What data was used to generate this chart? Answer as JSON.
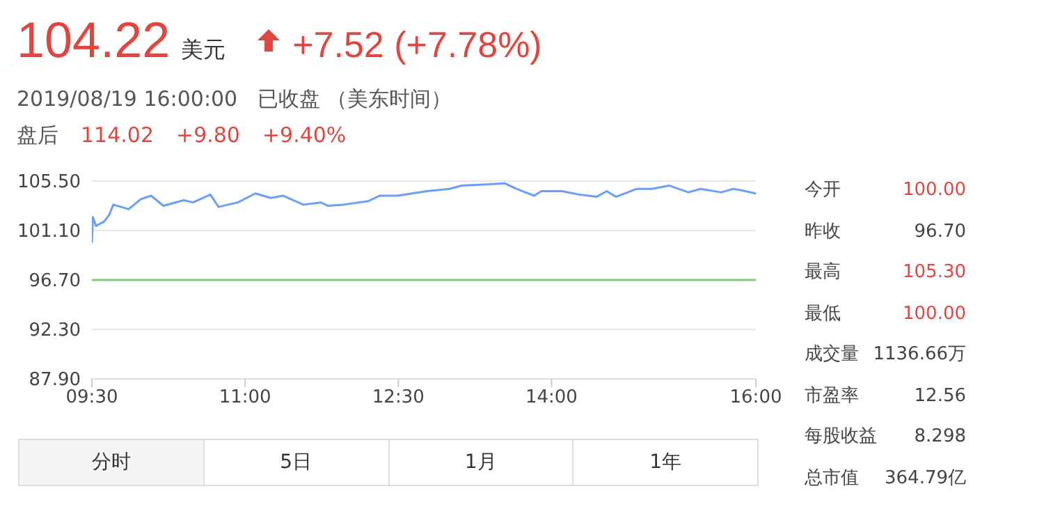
{
  "chart_data": {
    "type": "line",
    "title": "104.22",
    "subtitle": "2019/08/19 16:00:00   已收盘 （美东时间）",
    "annotations": [
      "美元",
      "+7.52 (+7.78%)",
      "盘后",
      "114.02",
      "+9.80",
      "+9.40%",
      "今开",
      "100.00",
      "昨收",
      "96.70",
      "最高",
      "105.30",
      "最低",
      "100.00",
      "成交量",
      "1136.66万",
      "市盈率",
      "12.56",
      "每股收益",
      "8.298",
      "总市值",
      "364.79亿",
      "分时",
      "5日",
      "1月",
      "1年"
    ],
    "series": [
      {
        "color": "#6a9ef8",
        "x": [
          9.5,
          9.51,
          9.54,
          9.62,
          9.67,
          9.71,
          9.86,
          9.98,
          10.08,
          10.2,
          10.4,
          10.49,
          10.66,
          10.74,
          10.93,
          11.1,
          11.25,
          11.37,
          11.57,
          11.74,
          11.81,
          11.96,
          12.2,
          12.32,
          12.49,
          12.78,
          13.0,
          13.12,
          13.37,
          13.54,
          13.66,
          13.83,
          13.9,
          14.1,
          14.27,
          14.44,
          14.54,
          14.63,
          14.83,
          14.98,
          15.15,
          15.34,
          15.46,
          15.66,
          15.78,
          15.85,
          16.0
        ],
        "values": [
          100.0,
          102.3,
          101.5,
          101.9,
          102.5,
          103.4,
          103.0,
          103.9,
          104.2,
          103.3,
          103.8,
          103.6,
          104.3,
          103.2,
          103.6,
          104.4,
          104.0,
          104.2,
          103.4,
          103.6,
          103.3,
          103.4,
          103.7,
          104.2,
          104.2,
          104.6,
          104.8,
          105.1,
          105.2,
          105.3,
          104.8,
          104.2,
          104.6,
          104.6,
          104.3,
          104.1,
          104.6,
          104.1,
          104.8,
          104.8,
          105.1,
          104.5,
          104.8,
          104.5,
          104.8,
          104.7,
          104.4
        ]
      }
    ],
    "xlim": [
      9.5,
      16
    ],
    "xticks": [
      {
        "value": 9.5,
        "label": "09:30"
      },
      {
        "value": 11,
        "label": "11:00"
      },
      {
        "value": 12.5,
        "label": "12:30"
      },
      {
        "value": 14,
        "label": "14:00"
      },
      {
        "value": 16,
        "label": "16:00"
      }
    ],
    "ylim": [
      87.9,
      105.5
    ],
    "yticks": [
      {
        "value": 87.9,
        "label": "87.90"
      },
      {
        "value": 92.3,
        "label": "92.30"
      },
      {
        "value": 96.7,
        "label": "96.70"
      },
      {
        "value": 101.1,
        "label": "101.10"
      },
      {
        "value": 105.5,
        "label": "105.50"
      }
    ],
    "ref_lines": [
      {
        "axis": "y",
        "value": 96.7,
        "color": "#7ccc7a"
      }
    ],
    "grid": "y",
    "marker": "none",
    "line_style": "solid"
  }
}
